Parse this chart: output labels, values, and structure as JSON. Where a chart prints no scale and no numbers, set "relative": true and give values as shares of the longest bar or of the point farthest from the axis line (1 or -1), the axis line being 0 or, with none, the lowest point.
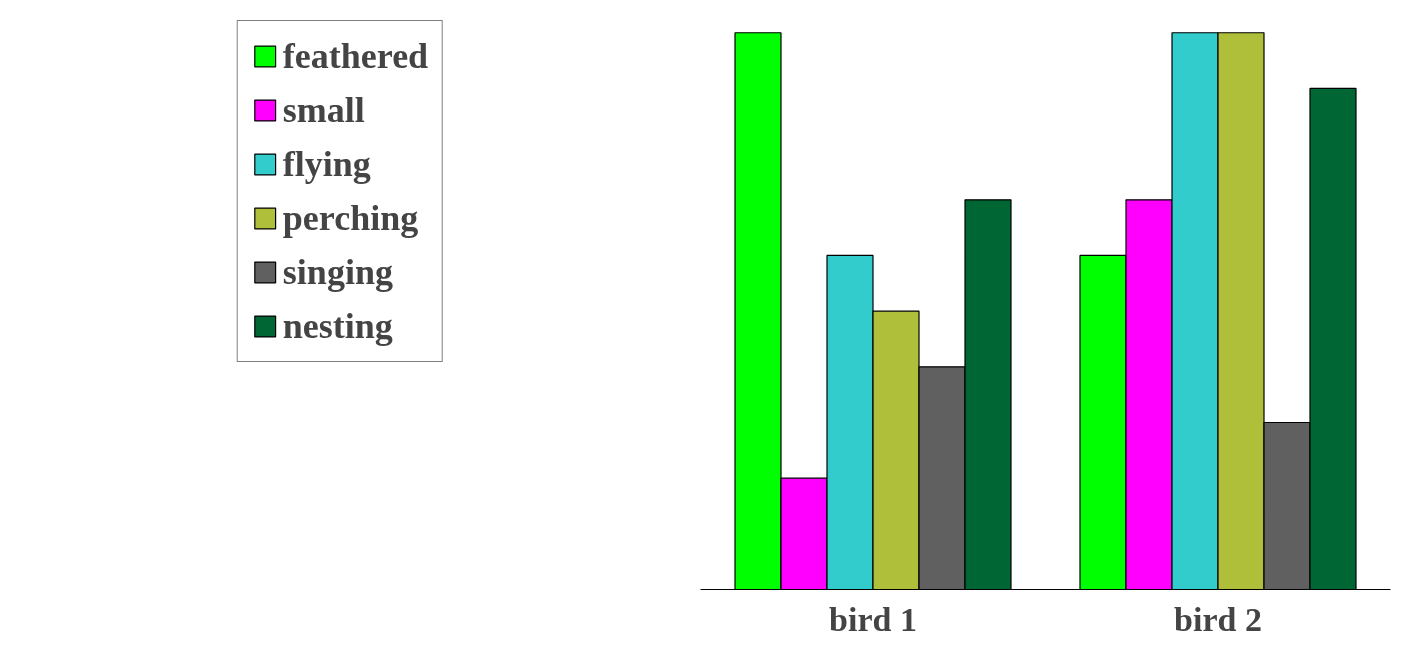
{
  "chart_data": {
    "type": "bar",
    "relative": true,
    "categories": [
      "bird 1",
      "bird 2"
    ],
    "legend": "left",
    "grid": false,
    "series": [
      {
        "name": "feathered",
        "color": "#00ff00",
        "values": [
          1,
          0.6
        ]
      },
      {
        "name": "small",
        "color": "#ff00ff",
        "values": [
          0.2,
          0.7
        ]
      },
      {
        "name": "flying",
        "color": "#33cccc",
        "values": [
          0.6,
          1
        ]
      },
      {
        "name": "perching",
        "color": "#afbf3a",
        "values": [
          0.5,
          1
        ]
      },
      {
        "name": "singing",
        "color": "#606060",
        "values": [
          0.4,
          0.3
        ]
      },
      {
        "name": "nesting",
        "color": "#006633",
        "values": [
          0.7,
          0.9
        ]
      }
    ]
  }
}
